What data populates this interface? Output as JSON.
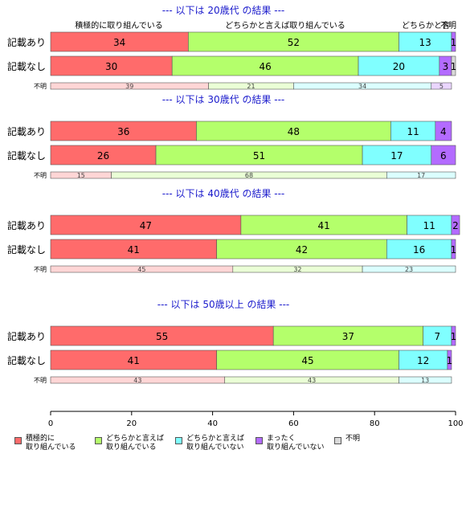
{
  "colors": {
    "積極的に取り組んでいる": "#ff6b6b",
    "どちらかと言えば取り組んでいる": "#b4ff6b",
    "どちらかと言えば取り組んでいない": "#80ffff",
    "まったく取り組んでいない": "#b36bff",
    "不明": "#d9d9d9",
    "title": "#1a1acc"
  },
  "chart_data": {
    "type": "bar",
    "orientation": "horizontal-stacked",
    "xlim": [
      0,
      100
    ],
    "xticks": [
      0,
      20,
      40,
      60,
      80,
      100
    ],
    "segments": [
      "積極的に取り組んでいる",
      "どちらかと言えば取り組んでいる",
      "どちらかと言えば取り組んでいない",
      "まったく取り組んでいない",
      "不明"
    ],
    "top_labels": [
      "積極的に取り組んでいる",
      "どちらかと言えば取り組んでいる",
      "どちらかと言",
      "不明"
    ],
    "groups": [
      {
        "title": "--- 以下は 20歳代 の結果 ---",
        "rows": [
          {
            "label": "記載あり",
            "values": [
              34,
              52,
              13,
              1,
              0
            ]
          },
          {
            "label": "記載なし",
            "values": [
              30,
              46,
              20,
              3,
              1
            ]
          },
          {
            "label": "不明",
            "values": [
              39,
              21,
              34,
              5,
              0
            ]
          }
        ]
      },
      {
        "title": "--- 以下は 30歳代 の結果 ---",
        "rows": [
          {
            "label": "記載あり",
            "values": [
              36,
              48,
              11,
              4,
              0
            ]
          },
          {
            "label": "記載なし",
            "values": [
              26,
              51,
              17,
              6,
              0
            ]
          },
          {
            "label": "不明",
            "values": [
              15,
              68,
              17,
              0,
              0
            ]
          }
        ]
      },
      {
        "title": "--- 以下は 40歳代 の結果 ---",
        "rows": [
          {
            "label": "記載あり",
            "values": [
              47,
              41,
              11,
              2,
              0
            ]
          },
          {
            "label": "記載なし",
            "values": [
              41,
              42,
              16,
              1,
              0
            ]
          },
          {
            "label": "不明",
            "values": [
              45,
              32,
              23,
              0,
              0
            ]
          }
        ]
      },
      {
        "title": "--- 以下は 50歳以上 の結果 ---",
        "rows": [
          {
            "label": "記載あり",
            "values": [
              55,
              37,
              7,
              1,
              0
            ]
          },
          {
            "label": "記載なし",
            "values": [
              41,
              45,
              12,
              1,
              0
            ]
          },
          {
            "label": "不明",
            "values": [
              43,
              43,
              13,
              0,
              0
            ]
          }
        ]
      }
    ],
    "legend": [
      "積極的に\n取り組んでいる",
      "どちらかと言えば\n取り組んでいる",
      "どちらかと言えば\n取り組んでいない",
      "まったく\n取り組んでいない",
      "不明"
    ]
  }
}
